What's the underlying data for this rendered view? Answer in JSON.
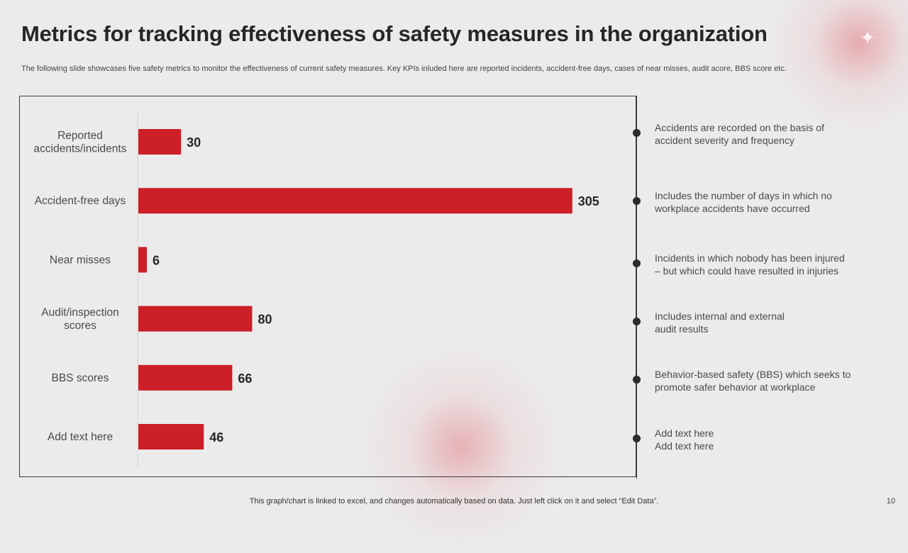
{
  "slide": {
    "title": "Metrics for tracking effectiveness of safety measures in the organization",
    "subtitle": "The following slide showcases five safety metrics to monitor the effectiveness of current safety measures. Key KPIs inluded here are reported incidents, accident-free days, cases of near misses, audit acore, BBS score etc.",
    "footer": "This graph/chart is linked to excel,  and changes automatically based on data. Just left click on it and select “Edit Data”.",
    "page_number": "10",
    "accent_color": "#cc1f27"
  },
  "chart_data": {
    "type": "bar",
    "orientation": "horizontal",
    "categories": [
      "Reported accidents/incidents",
      "Accident-free days",
      "Near misses",
      "Audit/inspection scores",
      "BBS scores",
      "Add text here"
    ],
    "category_lines": [
      [
        "Reported",
        "accidents/incidents"
      ],
      [
        "Accident-free days"
      ],
      [
        "Near misses"
      ],
      [
        "Audit/inspection",
        "scores"
      ],
      [
        "BBS scores"
      ],
      [
        "Add text here"
      ]
    ],
    "values": [
      30,
      305,
      6,
      80,
      66,
      46
    ],
    "xlim": [
      0,
      340
    ],
    "title": "",
    "xlabel": "",
    "ylabel": "",
    "grid": false,
    "legend": "none",
    "bar_color": "#cc1f27"
  },
  "notes": [
    {
      "lines": [
        "Accidents are recorded on the basis of",
        "accident severity and frequency"
      ]
    },
    {
      "lines": [
        "Includes the number of days in which no",
        "workplace accidents have occurred"
      ]
    },
    {
      "lines": [
        "Incidents in which nobody has been injured",
        "– but which could have resulted in injuries"
      ]
    },
    {
      "lines": [
        "Includes internal and external",
        "audit results"
      ]
    },
    {
      "lines": [
        "Behavior-based safety (BBS) which seeks to",
        "promote safer behavior at workplace"
      ]
    },
    {
      "lines": [
        "Add text here",
        "Add text here"
      ]
    }
  ]
}
